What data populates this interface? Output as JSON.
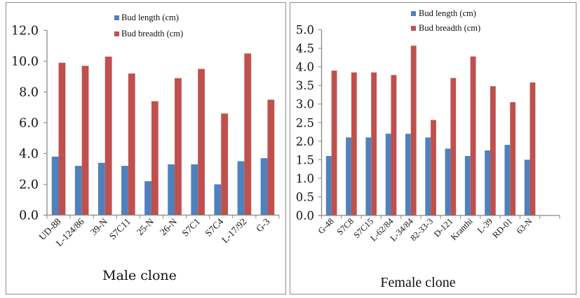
{
  "chart_data": [
    {
      "type": "bar",
      "title": "",
      "xlabel": "Male clone",
      "ylabel": "",
      "ylim": [
        0,
        12
      ],
      "yticks": [
        "0.0",
        "2.0",
        "4.0",
        "6.0",
        "8.0",
        "10.0",
        "12.0"
      ],
      "ytick_values": [
        0,
        2,
        4,
        6,
        8,
        10,
        12
      ],
      "grid": false,
      "legend_position": "top-center",
      "categories": [
        "UD-88",
        "L-124/86",
        "39-N",
        "S7C11",
        "25-N",
        "26-N",
        "S7C1",
        "S7C4",
        "L-17/92",
        "G-3"
      ],
      "series": [
        {
          "name": "Bud length (cm)",
          "color": "#4F81BD",
          "values": [
            3.8,
            3.2,
            3.4,
            3.2,
            2.2,
            3.3,
            3.3,
            2.0,
            3.5,
            3.7
          ]
        },
        {
          "name": "Bud breadth (cm)",
          "color": "#C0504D",
          "values": [
            9.9,
            9.7,
            10.3,
            9.2,
            7.4,
            8.9,
            9.5,
            6.6,
            10.5,
            7.5
          ]
        }
      ]
    },
    {
      "type": "bar",
      "title": "",
      "xlabel": "Female clone",
      "ylabel": "",
      "ylim": [
        0,
        5
      ],
      "yticks": [
        "0.0",
        "0.5",
        "1.0",
        "1.5",
        "2.0",
        "2.5",
        "3.0",
        "3.5",
        "4.0",
        "4.5",
        "5.0"
      ],
      "ytick_values": [
        0,
        0.5,
        1,
        1.5,
        2,
        2.5,
        3,
        3.5,
        4,
        4.5,
        5
      ],
      "grid": false,
      "legend_position": "top-center",
      "categories": [
        "G-48",
        "S7C8",
        "S7C15",
        "L-62/84",
        "L-34/84",
        "82-33-3",
        "D-121",
        "Kranthi",
        "L-39",
        "RD-01",
        "63-N",
        ""
      ],
      "series": [
        {
          "name": "Bud length (cm)",
          "color": "#4F81BD",
          "values": [
            1.6,
            2.1,
            2.1,
            2.2,
            2.2,
            2.1,
            1.8,
            1.6,
            1.75,
            1.9,
            1.5,
            null
          ]
        },
        {
          "name": "Bud breadth (cm)",
          "color": "#C0504D",
          "values": [
            3.9,
            3.85,
            3.85,
            3.78,
            4.57,
            2.57,
            3.7,
            4.28,
            3.48,
            3.05,
            3.58,
            null
          ]
        }
      ]
    }
  ]
}
